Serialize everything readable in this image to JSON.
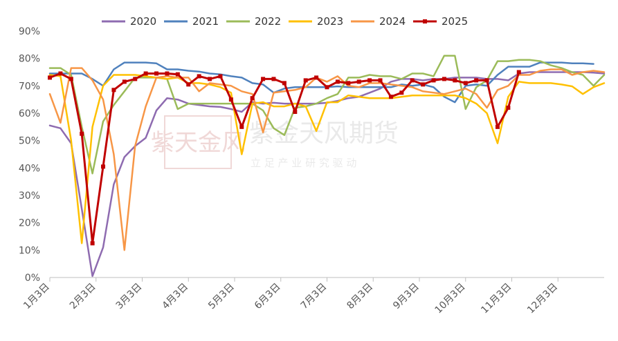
{
  "chart_data": {
    "type": "line",
    "title": "",
    "xlabel": "",
    "ylabel": "",
    "ylim": [
      0,
      90
    ],
    "y_ticks": [
      "0%",
      "10%",
      "20%",
      "30%",
      "40%",
      "50%",
      "60%",
      "70%",
      "80%",
      "90%"
    ],
    "x_ticks": [
      "1月3日",
      "2月3日",
      "3月3日",
      "4月3日",
      "5月3日",
      "6月3日",
      "7月3日",
      "8月3日",
      "9月3日",
      "10月3日",
      "11月3日",
      "12月3日"
    ],
    "x_domain_weeks": [
      0,
      52
    ],
    "grid": false,
    "legend_position": "top",
    "watermark": {
      "name": "紫金天风期货",
      "slogan": "立 足 产 业  研 究 驱 动",
      "seal": "紫天金风"
    },
    "series": [
      {
        "name": "2020",
        "color": "#8e6bb0",
        "markers": false,
        "values": [
          [
            0,
            55.5
          ],
          [
            1,
            54.5
          ],
          [
            2,
            49
          ],
          [
            3,
            25
          ],
          [
            4,
            0.5
          ],
          [
            5,
            11
          ],
          [
            6,
            34
          ],
          [
            7,
            44
          ],
          [
            8,
            48
          ],
          [
            9,
            51
          ],
          [
            10,
            61
          ],
          [
            11,
            65.5
          ],
          [
            12,
            65
          ],
          [
            13,
            63.5
          ],
          [
            14,
            63
          ],
          [
            15,
            62.5
          ],
          [
            16,
            62.3
          ],
          [
            17,
            61.5
          ],
          [
            18,
            60.5
          ],
          [
            19,
            64
          ],
          [
            20,
            63.5
          ],
          [
            21,
            63.8
          ],
          [
            22,
            63.5
          ],
          [
            23,
            63.5
          ],
          [
            24,
            63.5
          ],
          [
            25,
            63.5
          ],
          [
            26,
            63.8
          ],
          [
            27,
            64.5
          ],
          [
            28,
            65.5
          ],
          [
            29,
            66
          ],
          [
            30,
            67.5
          ],
          [
            31,
            69
          ],
          [
            32,
            71.5
          ],
          [
            33,
            72.5
          ],
          [
            34,
            72.5
          ],
          [
            35,
            72
          ],
          [
            36,
            72.5
          ],
          [
            37,
            72.5
          ],
          [
            38,
            73
          ],
          [
            39,
            73
          ],
          [
            40,
            73
          ],
          [
            41,
            72.5
          ],
          [
            42,
            72.5
          ],
          [
            43,
            72
          ],
          [
            44,
            74.5
          ],
          [
            45,
            75
          ],
          [
            46,
            75
          ],
          [
            47,
            75
          ],
          [
            48,
            75
          ],
          [
            49,
            75
          ],
          [
            50,
            75
          ],
          [
            51,
            74.8
          ],
          [
            52,
            74.5
          ]
        ]
      },
      {
        "name": "2021",
        "color": "#4f81bd",
        "markers": false,
        "values": [
          [
            0,
            74.5
          ],
          [
            1,
            74.5
          ],
          [
            2,
            74.5
          ],
          [
            3,
            74.5
          ],
          [
            4,
            72.5
          ],
          [
            5,
            70
          ],
          [
            6,
            76
          ],
          [
            7,
            78.5
          ],
          [
            8,
            78.5
          ],
          [
            9,
            78.5
          ],
          [
            10,
            78.2
          ],
          [
            11,
            76
          ],
          [
            12,
            76
          ],
          [
            13,
            75.5
          ],
          [
            14,
            75.2
          ],
          [
            15,
            74.5
          ],
          [
            16,
            74.2
          ],
          [
            17,
            73.5
          ],
          [
            18,
            73
          ],
          [
            19,
            71
          ],
          [
            20,
            70.5
          ],
          [
            21,
            67.5
          ],
          [
            22,
            69
          ],
          [
            23,
            69.5
          ],
          [
            24,
            69.5
          ],
          [
            25,
            69.5
          ],
          [
            26,
            69.5
          ],
          [
            27,
            69.8
          ],
          [
            28,
            69.5
          ],
          [
            29,
            69.5
          ],
          [
            30,
            69.5
          ],
          [
            31,
            69.5
          ],
          [
            32,
            69.5
          ],
          [
            33,
            70.5
          ],
          [
            34,
            70
          ],
          [
            35,
            70.5
          ],
          [
            36,
            69.5
          ],
          [
            37,
            66
          ],
          [
            38,
            64
          ],
          [
            39,
            70
          ],
          [
            40,
            70.5
          ],
          [
            41,
            70
          ],
          [
            42,
            74
          ],
          [
            43,
            77
          ],
          [
            44,
            77
          ],
          [
            45,
            77
          ],
          [
            46,
            78.5
          ],
          [
            47,
            78.5
          ],
          [
            48,
            78.5
          ],
          [
            49,
            78.2
          ],
          [
            50,
            78.2
          ],
          [
            51,
            78
          ]
        ]
      },
      {
        "name": "2022",
        "color": "#9bbb59",
        "markers": false,
        "values": [
          [
            0,
            76.5
          ],
          [
            1,
            76.5
          ],
          [
            2,
            74
          ],
          [
            3,
            55
          ],
          [
            4,
            38
          ],
          [
            5,
            57
          ],
          [
            6,
            63
          ],
          [
            7,
            68
          ],
          [
            8,
            73
          ],
          [
            9,
            73
          ],
          [
            10,
            73
          ],
          [
            11,
            72.5
          ],
          [
            12,
            61.5
          ],
          [
            13,
            63.5
          ],
          [
            14,
            63.5
          ],
          [
            15,
            63.5
          ],
          [
            16,
            63.5
          ],
          [
            17,
            63.5
          ],
          [
            18,
            63.5
          ],
          [
            19,
            63.5
          ],
          [
            20,
            61
          ],
          [
            21,
            54.5
          ],
          [
            22,
            52
          ],
          [
            23,
            62
          ],
          [
            24,
            62.5
          ],
          [
            25,
            63.5
          ],
          [
            26,
            65.5
          ],
          [
            27,
            67
          ],
          [
            28,
            73
          ],
          [
            29,
            73
          ],
          [
            30,
            74
          ],
          [
            31,
            73.5
          ],
          [
            32,
            73.5
          ],
          [
            33,
            72.5
          ],
          [
            34,
            74.5
          ],
          [
            35,
            74.5
          ],
          [
            36,
            73.5
          ],
          [
            37,
            81
          ],
          [
            38,
            81
          ],
          [
            39,
            61.5
          ],
          [
            40,
            69.5
          ],
          [
            41,
            72
          ],
          [
            42,
            79
          ],
          [
            43,
            79
          ],
          [
            44,
            79.5
          ],
          [
            45,
            79.5
          ],
          [
            46,
            79
          ],
          [
            47,
            77.5
          ],
          [
            48,
            76.5
          ],
          [
            49,
            75
          ],
          [
            50,
            74
          ],
          [
            51,
            70
          ],
          [
            52,
            74
          ]
        ]
      },
      {
        "name": "2023",
        "color": "#ffc000",
        "markers": false,
        "values": [
          [
            0,
            74
          ],
          [
            1,
            73.5
          ],
          [
            2,
            50
          ],
          [
            3,
            12.5
          ],
          [
            4,
            55
          ],
          [
            5,
            70
          ],
          [
            6,
            74
          ],
          [
            7,
            74
          ],
          [
            8,
            74
          ],
          [
            9,
            73.5
          ],
          [
            10,
            73
          ],
          [
            11,
            72.5
          ],
          [
            12,
            73
          ],
          [
            13,
            71
          ],
          [
            14,
            71
          ],
          [
            15,
            70.5
          ],
          [
            16,
            69.5
          ],
          [
            17,
            67.5
          ],
          [
            18,
            45
          ],
          [
            19,
            63.5
          ],
          [
            20,
            64
          ],
          [
            21,
            62.5
          ],
          [
            22,
            62.5
          ],
          [
            23,
            63.5
          ],
          [
            24,
            62.5
          ],
          [
            25,
            53.5
          ],
          [
            26,
            64
          ],
          [
            27,
            64
          ],
          [
            28,
            66.5
          ],
          [
            29,
            66
          ],
          [
            30,
            65.5
          ],
          [
            31,
            65.5
          ],
          [
            32,
            65.5
          ],
          [
            33,
            66
          ],
          [
            34,
            66.5
          ],
          [
            35,
            66.5
          ],
          [
            36,
            66.5
          ],
          [
            37,
            66.5
          ],
          [
            38,
            66.5
          ],
          [
            39,
            65.5
          ],
          [
            40,
            63.5
          ],
          [
            41,
            60
          ],
          [
            42,
            49
          ],
          [
            43,
            66
          ],
          [
            44,
            71.5
          ],
          [
            45,
            71
          ],
          [
            46,
            71
          ],
          [
            47,
            71
          ],
          [
            48,
            70.5
          ],
          [
            49,
            69.8
          ],
          [
            50,
            67
          ],
          [
            51,
            69.5
          ],
          [
            52,
            71
          ]
        ]
      },
      {
        "name": "2024",
        "color": "#f79646",
        "markers": false,
        "values": [
          [
            0,
            67
          ],
          [
            1,
            56.5
          ],
          [
            2,
            76.5
          ],
          [
            3,
            76.5
          ],
          [
            4,
            72
          ],
          [
            5,
            65
          ],
          [
            6,
            45
          ],
          [
            7,
            10
          ],
          [
            8,
            48
          ],
          [
            9,
            62.5
          ],
          [
            10,
            73
          ],
          [
            11,
            73.5
          ],
          [
            12,
            73
          ],
          [
            13,
            73
          ],
          [
            14,
            68
          ],
          [
            15,
            71
          ],
          [
            16,
            70.5
          ],
          [
            17,
            70
          ],
          [
            18,
            68
          ],
          [
            19,
            67
          ],
          [
            20,
            53
          ],
          [
            21,
            67.5
          ],
          [
            22,
            68
          ],
          [
            23,
            68.5
          ],
          [
            24,
            69.5
          ],
          [
            25,
            73
          ],
          [
            26,
            71.5
          ],
          [
            27,
            73.5
          ],
          [
            28,
            70
          ],
          [
            29,
            69.5
          ],
          [
            30,
            71
          ],
          [
            31,
            71
          ],
          [
            32,
            70.5
          ],
          [
            33,
            70
          ],
          [
            34,
            69.5
          ],
          [
            35,
            68
          ],
          [
            36,
            67.5
          ],
          [
            37,
            67
          ],
          [
            38,
            68
          ],
          [
            39,
            69
          ],
          [
            40,
            67
          ],
          [
            41,
            62
          ],
          [
            42,
            68.5
          ],
          [
            43,
            70
          ],
          [
            44,
            74
          ],
          [
            45,
            74
          ],
          [
            46,
            75.5
          ],
          [
            47,
            76
          ],
          [
            48,
            76
          ],
          [
            49,
            74
          ],
          [
            50,
            75
          ],
          [
            51,
            75.5
          ],
          [
            52,
            75
          ]
        ]
      },
      {
        "name": "2025",
        "color": "#c00000",
        "markers": true,
        "values": [
          [
            0,
            73
          ],
          [
            1,
            74.5
          ],
          [
            2,
            72.5
          ],
          [
            3,
            52.5
          ],
          [
            4,
            12.5
          ],
          [
            5,
            40.5
          ],
          [
            6,
            68.5
          ],
          [
            7,
            71.5
          ],
          [
            8,
            72.5
          ],
          [
            9,
            74.5
          ],
          [
            10,
            74.5
          ],
          [
            11,
            74.5
          ],
          [
            12,
            74.2
          ],
          [
            13,
            70.5
          ],
          [
            14,
            73.5
          ],
          [
            15,
            72.5
          ],
          [
            16,
            73.5
          ],
          [
            17,
            65
          ],
          [
            18,
            55
          ],
          [
            19,
            65.5
          ],
          [
            20,
            72.5
          ],
          [
            21,
            72.5
          ],
          [
            22,
            71
          ],
          [
            23,
            60.5
          ],
          [
            24,
            72
          ],
          [
            25,
            73
          ],
          [
            26,
            69.5
          ],
          [
            27,
            71.5
          ],
          [
            28,
            71
          ],
          [
            29,
            71.5
          ],
          [
            30,
            72
          ],
          [
            31,
            72
          ],
          [
            32,
            66
          ],
          [
            33,
            67.5
          ],
          [
            34,
            72
          ],
          [
            35,
            70.5
          ],
          [
            36,
            72
          ],
          [
            37,
            72.5
          ],
          [
            38,
            72
          ],
          [
            39,
            71
          ],
          [
            40,
            72
          ],
          [
            41,
            72
          ],
          [
            42,
            55
          ],
          [
            43,
            62
          ],
          [
            44,
            75
          ]
        ]
      }
    ]
  }
}
